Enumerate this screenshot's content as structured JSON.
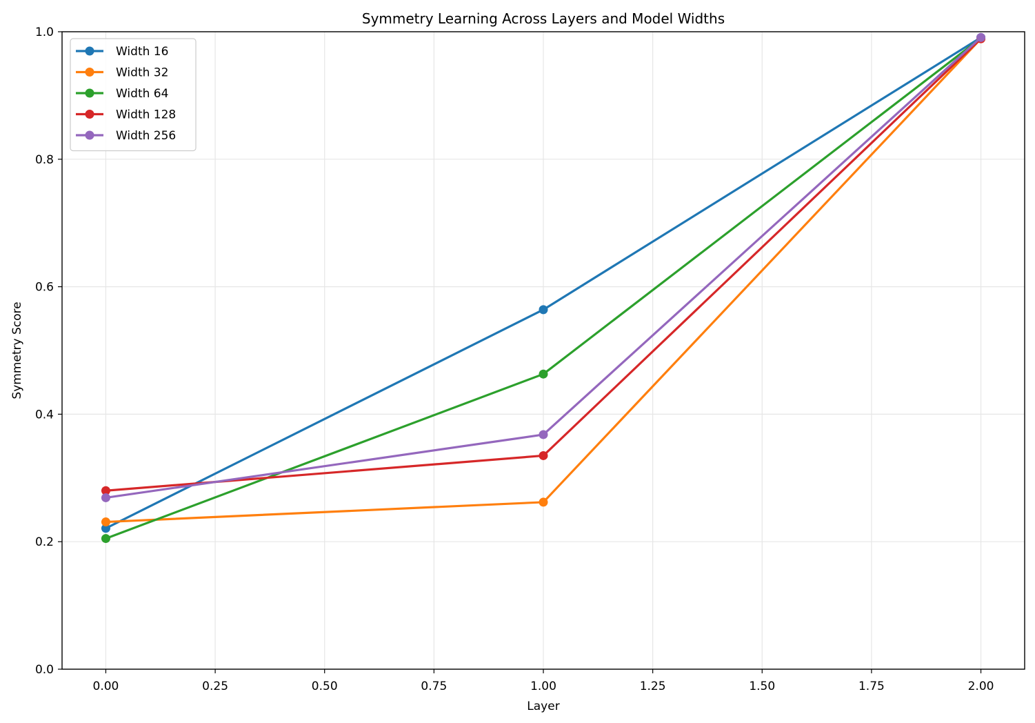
{
  "chart_data": {
    "type": "line",
    "title": "Symmetry Learning Across Layers and Model Widths",
    "xlabel": "Layer",
    "ylabel": "Symmetry Score",
    "xlim": [
      -0.1,
      2.1
    ],
    "ylim": [
      0.0,
      1.0
    ],
    "xticks": [
      0.0,
      0.25,
      0.5,
      0.75,
      1.0,
      1.25,
      1.5,
      1.75,
      2.0
    ],
    "xtick_labels": [
      "0.00",
      "0.25",
      "0.50",
      "0.75",
      "1.00",
      "1.25",
      "1.50",
      "1.75",
      "2.00"
    ],
    "yticks": [
      0.0,
      0.2,
      0.4,
      0.6,
      0.8,
      1.0
    ],
    "ytick_labels": [
      "0.0",
      "0.2",
      "0.4",
      "0.6",
      "0.8",
      "1.0"
    ],
    "grid": true,
    "legend_position": "top-left",
    "x": [
      0,
      1,
      2
    ],
    "series": [
      {
        "name": "Width 16",
        "color": "#1f77b4",
        "values": [
          0.221,
          0.564,
          0.991
        ]
      },
      {
        "name": "Width 32",
        "color": "#ff7f0e",
        "values": [
          0.231,
          0.262,
          0.989
        ]
      },
      {
        "name": "Width 64",
        "color": "#2ca02c",
        "values": [
          0.205,
          0.463,
          0.99
        ]
      },
      {
        "name": "Width 128",
        "color": "#d62728",
        "values": [
          0.28,
          0.335,
          0.989
        ]
      },
      {
        "name": "Width 256",
        "color": "#9467bd",
        "values": [
          0.269,
          0.368,
          0.991
        ]
      }
    ]
  }
}
